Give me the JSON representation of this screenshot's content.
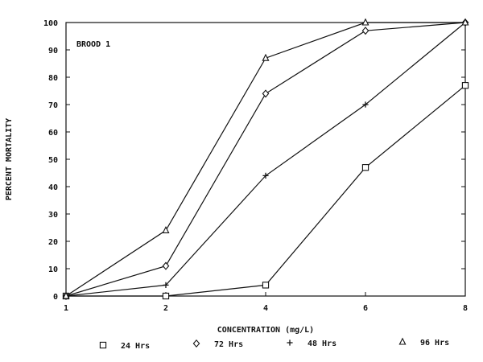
{
  "chart_data": {
    "type": "line",
    "annotation": "BROOD 1",
    "xlabel": "CONCENTRATION (mg/L)",
    "ylabel": "PERCENT MORTALITY",
    "x_ticks": [
      1,
      2,
      4,
      6,
      8
    ],
    "y_ticks": [
      0,
      10,
      20,
      30,
      40,
      50,
      60,
      70,
      80,
      90,
      100
    ],
    "ylim": [
      0,
      100
    ],
    "grid": false,
    "legend_position": "bottom",
    "series": [
      {
        "name": "24 Hrs",
        "marker": "square",
        "points": [
          [
            1,
            0
          ],
          [
            2,
            0
          ],
          [
            4,
            4
          ],
          [
            6,
            47
          ],
          [
            8,
            77
          ]
        ]
      },
      {
        "name": "72 Hrs",
        "marker": "diamond",
        "points": [
          [
            1,
            0
          ],
          [
            2,
            11
          ],
          [
            4,
            74
          ],
          [
            6,
            97
          ],
          [
            8,
            100
          ]
        ]
      },
      {
        "name": "48 Hrs",
        "marker": "plus",
        "points": [
          [
            1,
            0
          ],
          [
            2,
            4
          ],
          [
            4,
            44
          ],
          [
            6,
            70
          ],
          [
            8,
            100
          ]
        ]
      },
      {
        "name": "96 Hrs",
        "marker": "triangle",
        "points": [
          [
            1,
            0
          ],
          [
            2,
            24
          ],
          [
            4,
            87
          ],
          [
            6,
            100
          ],
          [
            8,
            100
          ]
        ]
      }
    ]
  }
}
